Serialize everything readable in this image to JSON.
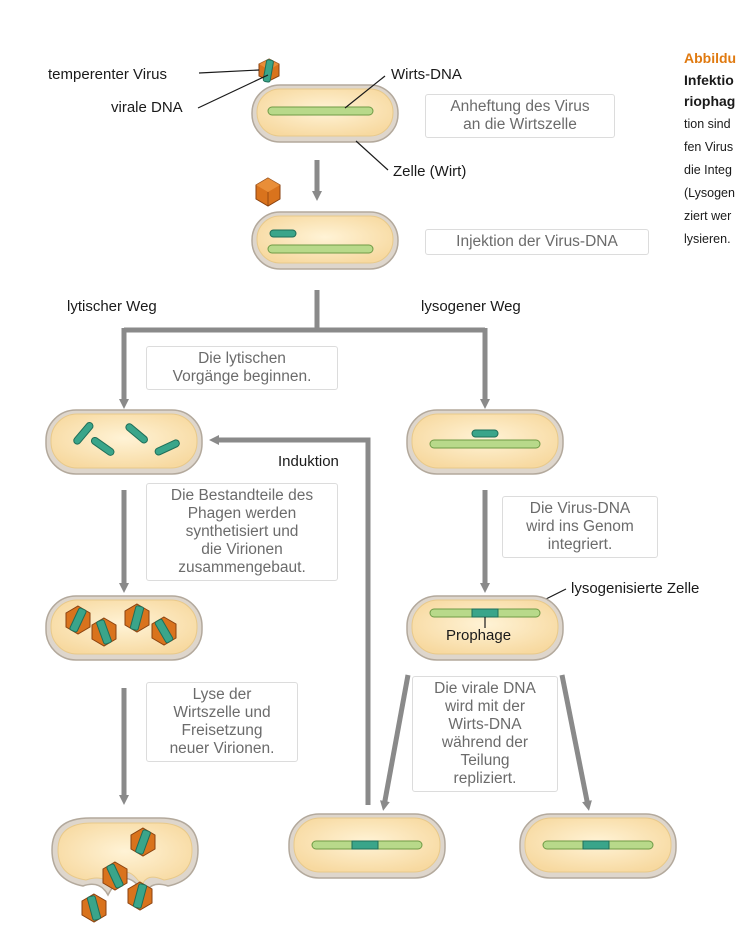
{
  "labels": {
    "temperate_virus": "temperenter Virus",
    "viral_dna": "virale DNA",
    "host_dna": "Wirts-DNA",
    "host_cell": "Zelle (Wirt)",
    "lytic_path": "lytischer Weg",
    "lysogenic_path": "lysogener Weg",
    "induction": "Induktion",
    "lysogenized_cell": "lysogenisierte Zelle",
    "prophage": "Prophage"
  },
  "steps": {
    "attachment": "Anheftung des Virus\nan die Wirtszelle",
    "injection": "Injektion der Virus-DNA",
    "lytic_begin": "Die lytischen\nVorgänge beginnen.",
    "synthesis": "Die Bestandteile des\nPhagen werden\nsynthetisiert und\ndie Virionen\nzusammengebaut.",
    "lysis": "Lyse der\nWirtszelle und\nFreisetzung\nneuer Virionen.",
    "integration": "Die Virus-DNA\nwird ins Genom\nintegriert.",
    "replication": "Die virale DNA\nwird mit der\nWirts-DNA\nwährend der\nTeilung\nrepliziert."
  },
  "sidebar": {
    "heading": "Abbildu",
    "title_lines": [
      "Infektio",
      "riophag"
    ],
    "text_lines": [
      "tion sind",
      "fen Virus",
      "die Integ",
      "(Lysogen",
      "ziert wer",
      "lysieren."
    ]
  },
  "colors": {
    "cell_fill": "#fdebc0",
    "cell_border": "#c9c0b4",
    "dna_green": "#b8d98a",
    "viral_dna": "#3aa58a",
    "capsid": "#d9731d",
    "arrow": "#8a8a8a",
    "accent": "#e07a10"
  }
}
